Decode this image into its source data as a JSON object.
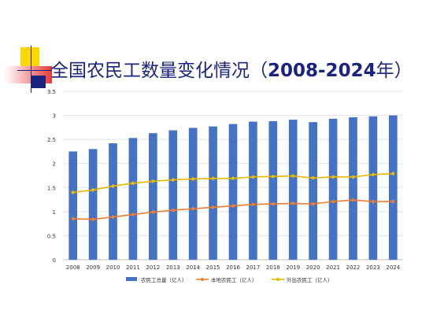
{
  "slide": {
    "title_prefix": "全国农民工数量变化情况（",
    "title_years": "2008-2024",
    "title_suffix": "年）"
  },
  "colors": {
    "bar": "#4472c4",
    "local": "#ed7d31",
    "outside": "#e6b800",
    "title": "#1a237e",
    "deco_yellow": "#ffd700",
    "deco_red": "#e53935",
    "deco_navy": "#1a237e"
  },
  "chart_data": {
    "type": "bar",
    "categories": [
      "2008",
      "2009",
      "2010",
      "2011",
      "2012",
      "2013",
      "2014",
      "2015",
      "2016",
      "2017",
      "2018",
      "2019",
      "2020",
      "2021",
      "2022",
      "2023",
      "2024"
    ],
    "ylim": [
      0,
      3.5
    ],
    "yticks": [
      "0",
      "0.5",
      "1",
      "1.5",
      "2",
      "2.5",
      "3",
      "3.5"
    ],
    "grid": true,
    "legend_position": "bottom",
    "series": [
      {
        "name": "农民工总量（亿人）",
        "kind": "bar",
        "values": [
          2.25,
          2.3,
          2.42,
          2.53,
          2.63,
          2.69,
          2.74,
          2.77,
          2.82,
          2.87,
          2.88,
          2.91,
          2.86,
          2.93,
          2.96,
          2.98,
          3.0
        ]
      },
      {
        "name": "本地农民工（亿人）",
        "kind": "line",
        "values": [
          0.85,
          0.84,
          0.89,
          0.94,
          0.99,
          1.03,
          1.06,
          1.09,
          1.12,
          1.15,
          1.16,
          1.17,
          1.16,
          1.21,
          1.24,
          1.21,
          1.21
        ]
      },
      {
        "name": "外出农民工（亿人）",
        "kind": "line",
        "values": [
          1.4,
          1.45,
          1.53,
          1.59,
          1.63,
          1.66,
          1.68,
          1.69,
          1.69,
          1.72,
          1.73,
          1.74,
          1.7,
          1.72,
          1.72,
          1.77,
          1.79
        ]
      }
    ]
  }
}
